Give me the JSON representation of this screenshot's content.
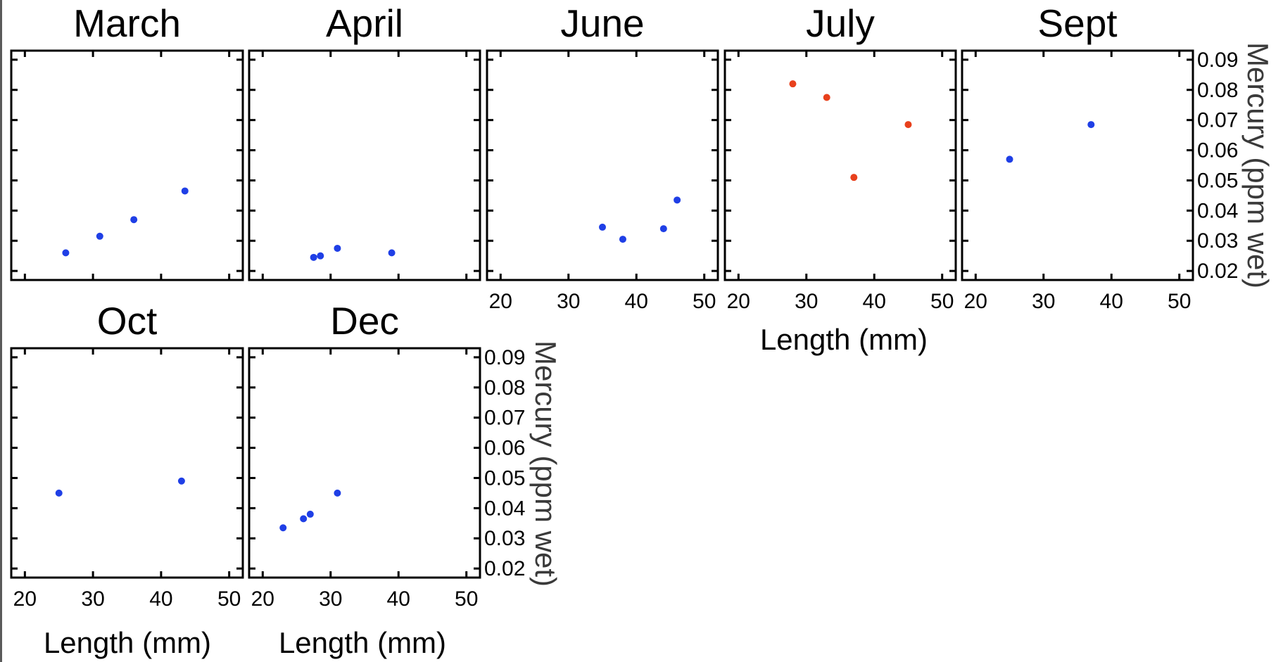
{
  "chart_data": [
    {
      "type": "scatter",
      "title": "March",
      "series": [
        {
          "color": "#1f3fe6",
          "points": [
            [
              26,
              0.026
            ],
            [
              31,
              0.0315
            ],
            [
              36,
              0.037
            ],
            [
              43.5,
              0.0465
            ]
          ]
        }
      ]
    },
    {
      "type": "scatter",
      "title": "April",
      "series": [
        {
          "color": "#1f3fe6",
          "points": [
            [
              27.5,
              0.0245
            ],
            [
              28.5,
              0.025
            ],
            [
              31,
              0.0275
            ],
            [
              39,
              0.026
            ]
          ]
        }
      ]
    },
    {
      "type": "scatter",
      "title": "June",
      "series": [
        {
          "color": "#1f3fe6",
          "points": [
            [
              35,
              0.0345
            ],
            [
              38,
              0.0305
            ],
            [
              44,
              0.034
            ],
            [
              46,
              0.0435
            ]
          ]
        }
      ]
    },
    {
      "type": "scatter",
      "title": "July",
      "series": [
        {
          "color": "#e8401c",
          "points": [
            [
              28,
              0.082
            ],
            [
              33,
              0.0775
            ],
            [
              37,
              0.051
            ],
            [
              45,
              0.0685
            ]
          ]
        }
      ]
    },
    {
      "type": "scatter",
      "title": "Sept",
      "series": [
        {
          "color": "#1f3fe6",
          "points": [
            [
              25,
              0.057
            ],
            [
              37,
              0.0685
            ]
          ]
        }
      ]
    },
    {
      "type": "scatter",
      "title": "Oct",
      "series": [
        {
          "color": "#1f3fe6",
          "points": [
            [
              25,
              0.045
            ],
            [
              43,
              0.049
            ]
          ]
        }
      ]
    },
    {
      "type": "scatter",
      "title": "Dec",
      "series": [
        {
          "color": "#1f3fe6",
          "points": [
            [
              23,
              0.0335
            ],
            [
              26,
              0.0365
            ],
            [
              27,
              0.038
            ],
            [
              31,
              0.045
            ]
          ]
        }
      ]
    }
  ],
  "axes": {
    "xlim": [
      18,
      52
    ],
    "ylim": [
      0.017,
      0.093
    ],
    "xticks": [
      20,
      30,
      40,
      50
    ],
    "yticks": [
      0.02,
      0.03,
      0.04,
      0.05,
      0.06,
      0.07,
      0.08,
      0.09
    ],
    "xtick_labels": [
      "20",
      "30",
      "40",
      "50"
    ],
    "ytick_labels": [
      "0.02",
      "0.03",
      "0.04",
      "0.05",
      "0.06",
      "0.07",
      "0.08",
      "0.09"
    ],
    "xlabel": "Length (mm)",
    "ylabel": "Mercury (ppm wet)"
  }
}
